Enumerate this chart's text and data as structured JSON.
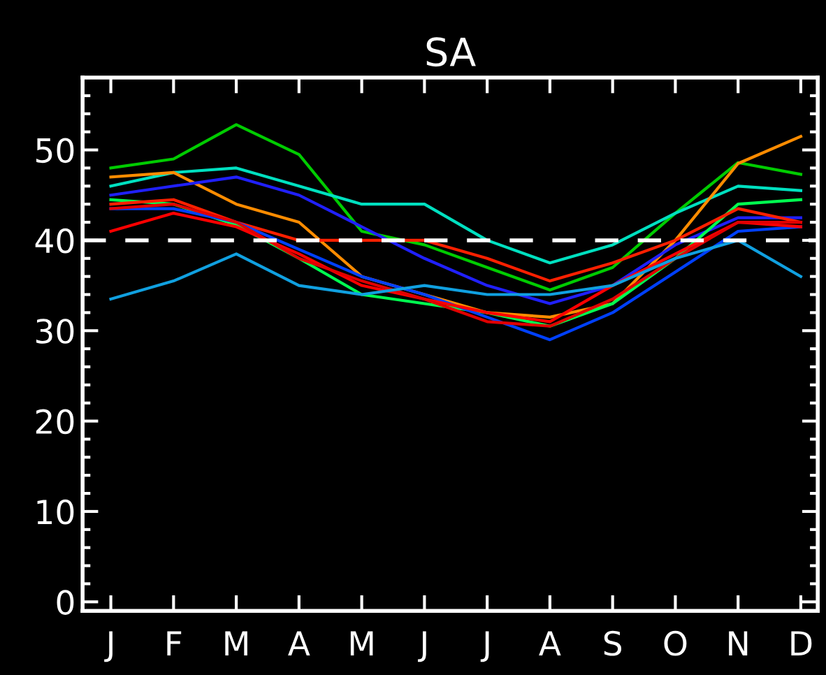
{
  "chart_data": {
    "type": "line",
    "title": "SA",
    "categories": [
      "J",
      "F",
      "M",
      "A",
      "M",
      "J",
      "J",
      "A",
      "S",
      "O",
      "N",
      "D"
    ],
    "ylim": [
      -1,
      58
    ],
    "yticks": [
      0,
      10,
      20,
      30,
      40,
      50
    ],
    "grid": false,
    "legend": false,
    "marker": "none",
    "line_style": "solid",
    "ref_lines": [
      {
        "axis": "y",
        "value": 40,
        "color": "#ffffff",
        "line_style": "dashed"
      }
    ],
    "series": [
      {
        "color": "#00cc00",
        "values": [
          48,
          49,
          52.8,
          49.5,
          41,
          39.5,
          37,
          34.5,
          37,
          43,
          48.6,
          47.3
        ]
      },
      {
        "color": "#00e0c0",
        "values": [
          46,
          47.5,
          48,
          46,
          44,
          44,
          40,
          37.5,
          39.5,
          43,
          46,
          45.5
        ]
      },
      {
        "color": "#ff8c00",
        "values": [
          47,
          47.5,
          44,
          42,
          36,
          34,
          32,
          31.5,
          33,
          40,
          48.5,
          51.5
        ]
      },
      {
        "color": "#2020ff",
        "values": [
          45,
          46,
          47,
          45,
          41.5,
          38,
          35,
          33,
          35,
          39.5,
          42.5,
          42.5
        ]
      },
      {
        "color": "#00ff50",
        "values": [
          44.5,
          44,
          41.7,
          38,
          34,
          33,
          32,
          30.5,
          33,
          38,
          44,
          44.5
        ]
      },
      {
        "color": "#ff2000",
        "values": [
          44,
          44.5,
          42,
          40,
          40,
          40,
          38,
          35.5,
          37.5,
          40,
          43.5,
          42
        ]
      },
      {
        "color": "#0040ff",
        "values": [
          43.5,
          43.5,
          42,
          39,
          36,
          34,
          31.5,
          29,
          32,
          36.5,
          41,
          41.5
        ]
      },
      {
        "color": "#ff0000",
        "values": [
          41,
          43,
          41.5,
          38.5,
          35,
          33.5,
          32,
          31,
          35,
          38.5,
          42,
          41.5
        ]
      },
      {
        "color": "#e00000",
        "values": [
          43.5,
          44,
          42,
          38,
          35.5,
          33.5,
          31,
          30.5,
          33.5,
          38,
          42,
          42
        ]
      },
      {
        "color": "#10a0e0",
        "values": [
          33.5,
          35.5,
          38.5,
          35,
          34,
          35,
          34,
          34,
          35,
          38,
          40,
          36
        ]
      }
    ]
  }
}
